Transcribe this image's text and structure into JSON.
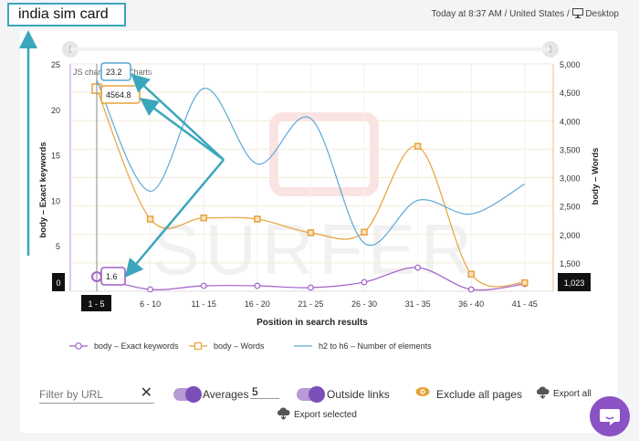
{
  "header": {
    "keyword": "india sim card",
    "meta_text": "Today at 8:37 AM / United States /",
    "device": "Desktop",
    "monitor_icon": "monitor-icon"
  },
  "chart_data": {
    "type": "line",
    "credit": "JS chart by amCharts",
    "watermark": "SURFER",
    "categories": [
      "1 - 5",
      "6 - 10",
      "11 - 15",
      "16 - 20",
      "21 - 25",
      "26 - 30",
      "31 - 35",
      "36 - 40",
      "41 - 45"
    ],
    "xlabel": "Position in search results",
    "ylabel_left": "body – Exact keywords",
    "ylabel_right": "body – Words",
    "ylim_left": [
      0,
      25
    ],
    "ylim_right": [
      1000,
      5000
    ],
    "yticks_left": [
      "0",
      "5",
      "10",
      "15",
      "20",
      "25"
    ],
    "yticks_right": [
      "1,000",
      "1,500",
      "2,000",
      "2,500",
      "3,000",
      "3,500",
      "4,000",
      "4,500",
      "5,000"
    ],
    "series": [
      {
        "name": "body – Exact keywords",
        "axis": "left",
        "color": "#a15ec8",
        "marker": "circle",
        "values": [
          1.6,
          0.2,
          0.6,
          0.6,
          0.4,
          1.0,
          2.6,
          0.2,
          0.8
        ]
      },
      {
        "name": "body – Words",
        "axis": "right",
        "color": "#e8a23a",
        "marker": "square",
        "values": [
          4564.8,
          2270,
          2290,
          2270,
          2030,
          2040,
          3550,
          1300,
          1150
        ]
      },
      {
        "name": "h2 to h6 – Number of elements",
        "axis": "left",
        "color": "#5aa9d8",
        "marker": "none",
        "values": [
          23.2,
          11.0,
          22.3,
          14.0,
          19.0,
          5.3,
          10.0,
          8.5,
          11.8
        ]
      }
    ],
    "cursor": {
      "category": "1 - 5",
      "y_left_value": "0",
      "y_right_value": "1,023",
      "tooltip_keywords": "1.6",
      "tooltip_words": "4564.8",
      "tooltip_elements": "23.2"
    }
  },
  "controls": {
    "filter_placeholder": "Filter by URL",
    "clear_icon": "✕",
    "averages_label": "Averages",
    "averages_value": "5",
    "outside_links_label": "Outside links",
    "exclude_label": "Exclude all pages",
    "export_all_label": "Export all",
    "export_selected_label": "Export selected"
  },
  "colors": {
    "annotation": "#3aa6bc",
    "accent": "#7b4fb8",
    "orange": "#e8a23a"
  }
}
